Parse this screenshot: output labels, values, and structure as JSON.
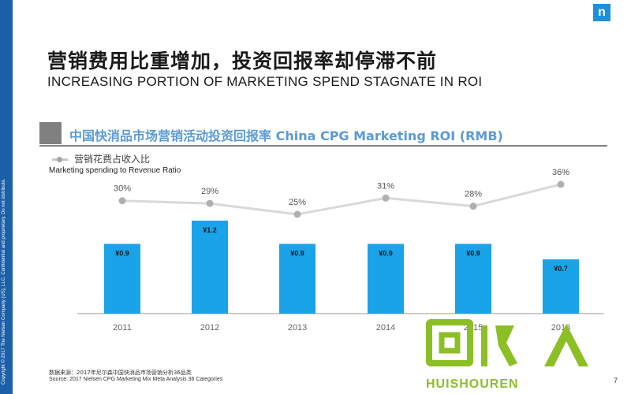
{
  "slide": {
    "sidebar_text": "Copyright © 2017 The Nielsen Company (US), LLC. Confidential and proprietary. Do not distribute.",
    "logo_letter": "n",
    "title_zh": "营销费用比重增加，投资回报率却停滞不前",
    "title_en": "INCREASING PORTION OF MARKETING SPEND STAGNATE IN ROI",
    "source_zh": "数据来源：2017年尼尔森中国快消品市场营销分析36品类",
    "source_en": "Source: 2017 Nielsen CPG Marketing Mix Meta Analysis 36 Categories",
    "page_number": "7"
  },
  "watermark": {
    "text": "HUISHOUREN",
    "icon_name": "recycle-logo-icon",
    "color": "#8cbf26"
  },
  "colors": {
    "accent": "#1e8fd8",
    "bar": "#1aa3e8",
    "line": "#d9d9d9",
    "marker": "#b0b0b0",
    "chart_title": "#5b9bd5",
    "sidebar": "#1b5fa8"
  },
  "chart_data": {
    "type": "bar",
    "title": "中国快消品市场营销活动投资回报率 China CPG Marketing ROI (RMB)",
    "categories": [
      "2011",
      "2012",
      "2013",
      "2014",
      "2015",
      "2016"
    ],
    "series": [
      {
        "values": [
          0.9,
          1.2,
          0.9,
          0.9,
          0.9,
          0.7
        ],
        "labels": [
          "¥0.9",
          "¥1.2",
          "¥0.9",
          "¥0.9",
          "¥0.9",
          "¥0.7"
        ]
      },
      {
        "name": "营销花费占收入比 Marketing spending to Revenue Ratio",
        "type": "line",
        "values": [
          30,
          29,
          25,
          31,
          28,
          36
        ],
        "labels": [
          "30%",
          "29%",
          "25%",
          "31%",
          "28%",
          "36%"
        ]
      }
    ],
    "legend": {
      "label_zh": "营销花费占收入比",
      "label_en": "Marketing spending to Revenue Ratio",
      "position": "top-left"
    },
    "ylim": [
      0,
      1.2
    ],
    "line_ylim": [
      20,
      40
    ],
    "grid": false
  }
}
